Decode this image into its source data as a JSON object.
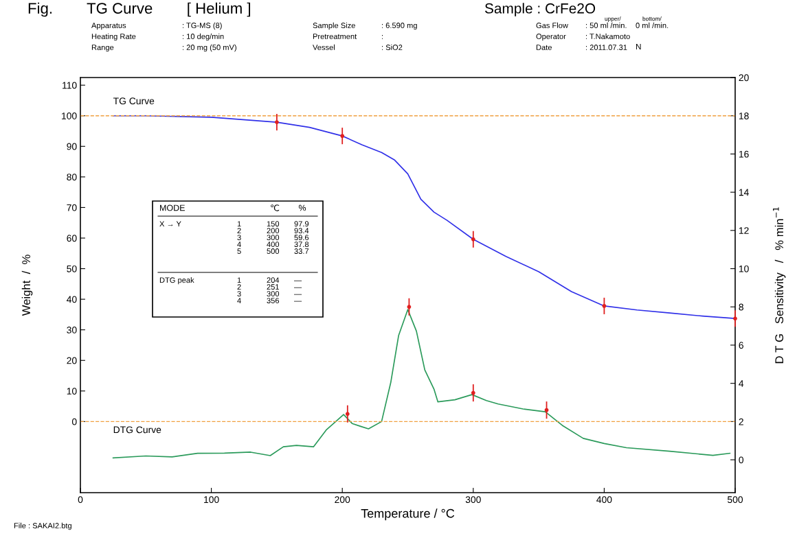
{
  "chart_data": {
    "type": "line",
    "title": "Fig.        TG Curve        [ Helium ]",
    "subtitle": "Sample : CrFe2O",
    "xlabel": "Temperature / °C",
    "ylabel": "Weight  /  %",
    "y2label": "D T G   Sensitivity   /   % min$^{−1}$",
    "xlim": [
      0,
      500
    ],
    "xticks": [
      0,
      100,
      200,
      300,
      400,
      500
    ],
    "ylim": [
      -23.25,
      112.5
    ],
    "yticks": [
      0,
      10,
      20,
      30,
      40,
      50,
      60,
      70,
      80,
      90,
      100,
      110
    ],
    "y2lim": [
      -1.72,
      20
    ],
    "y2ticks": [
      0,
      2,
      4,
      6,
      8,
      10,
      12,
      14,
      16,
      18,
      20
    ],
    "grid": false,
    "legend": false,
    "series": [
      {
        "name": "TG Curve",
        "axis": "y",
        "color": "#3030e8",
        "line_style": "solid",
        "x": [
          25,
          50,
          100,
          150,
          175,
          200,
          215,
          230,
          240,
          250,
          260,
          270,
          280,
          300,
          325,
          350,
          375,
          400,
          425,
          450,
          475,
          500
        ],
        "values": [
          100,
          100,
          99.5,
          97.9,
          96.2,
          93.4,
          90.5,
          88,
          85.5,
          81,
          72.7,
          68.5,
          65.8,
          59.6,
          54,
          49,
          42.5,
          37.8,
          36.5,
          35.5,
          34.5,
          33.7
        ]
      },
      {
        "name": "DTG Curve",
        "axis": "y2",
        "color": "#2a9a5a",
        "line_style": "solid",
        "x": [
          25,
          50,
          70,
          89.5,
          110,
          130,
          145,
          155,
          165,
          178,
          188,
          195,
          201,
          207.5,
          214,
          220,
          230,
          237,
          243,
          250,
          256.6,
          263,
          270,
          273,
          286,
          299,
          310,
          319,
          338,
          355,
          368,
          384,
          400,
          417,
          450,
          483,
          496
        ],
        "values": [
          0.1,
          0.2,
          0.15,
          0.34,
          0.35,
          0.4,
          0.22,
          0.68,
          0.75,
          0.68,
          1.58,
          2.0,
          2.37,
          1.9,
          1.75,
          1.62,
          2.0,
          4.04,
          6.5,
          7.86,
          6.73,
          4.7,
          3.7,
          3.03,
          3.14,
          3.41,
          3.1,
          2.92,
          2.66,
          2.51,
          1.8,
          1.12,
          0.85,
          0.63,
          0.45,
          0.23,
          0.34
        ]
      },
      {
        "type": "scatter",
        "axis": "y",
        "color": "#e02020",
        "marker": "circle",
        "x": [
          150,
          200,
          300,
          400,
          500
        ],
        "values": [
          97.9,
          93.4,
          59.6,
          37.8,
          33.7
        ],
        "errors": [
          2.7,
          2.7,
          2.7,
          2.7,
          2.7
        ]
      },
      {
        "type": "scatter",
        "axis": "y2",
        "color": "#e02020",
        "marker": "circle",
        "x": [
          204,
          251,
          300,
          356
        ],
        "values": [
          2.4,
          8.0,
          3.5,
          2.6
        ],
        "errors": [
          0.45,
          0.45,
          0.45,
          0.45
        ]
      }
    ],
    "ref_lines": [
      {
        "axis": "y",
        "value": 100,
        "color": "#f0a040",
        "line_style": "dashed"
      },
      {
        "axis": "y",
        "value": 0,
        "color": "#f0a040",
        "line_style": "dashed"
      }
    ],
    "annotations": [
      "Apparatus",
      ": TG-MS (8)",
      "Sample Size",
      ": 6.590 mg",
      "Gas Flow",
      ": 50 ml /min.",
      "Heating Rate",
      ": 10 deg/min",
      "Pretreatment",
      ":",
      "Operator",
      ": T.Nakamoto",
      "Range",
      ": 20 mg (50 mV)",
      "Vessel",
      ": SiO2",
      "Date",
      ": 2011.07.31",
      "upper/",
      "bottom/",
      "0 ml /min.",
      "N",
      "File : SAKAI2.btg",
      "MODE",
      "℃",
      "%",
      "X → Y",
      "1\n2\n3\n4\n5",
      "150\n200\n300\n400\n500",
      "97.9\n93.4\n59.6\n37.8\n33.7",
      "DTG peak",
      "1\n2\n3\n4",
      "204\n251\n300\n356",
      "—\n—\n—\n—"
    ]
  }
}
